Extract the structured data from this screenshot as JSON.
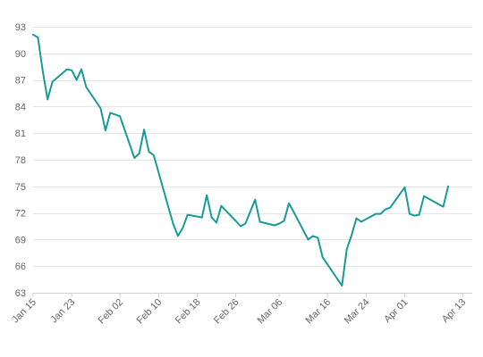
{
  "chart_data": {
    "type": "line",
    "title": "",
    "xlabel": "",
    "ylabel": "",
    "ylim": [
      63,
      93
    ],
    "yticks": [
      63,
      66,
      69,
      72,
      75,
      78,
      81,
      84,
      87,
      90,
      93
    ],
    "xlim": [
      "Jan 15",
      "Apr 15"
    ],
    "xtick_labels": [
      "Jan 15",
      "Jan 23",
      "Feb 02",
      "Feb 10",
      "Feb 18",
      "Feb 26",
      "Mar 06",
      "Mar 16",
      "Mar 24",
      "Apr 01",
      "Apr 13"
    ],
    "grid": true,
    "legend": "none",
    "line_color": "#1a9a96",
    "series": [
      {
        "points": [
          {
            "x": "Jan 15",
            "y": 92.1
          },
          {
            "x": "Jan 16",
            "y": 91.8
          },
          {
            "x": "Jan 17",
            "y": 88.0
          },
          {
            "x": "Jan 18",
            "y": 84.8
          },
          {
            "x": "Jan 19",
            "y": 86.8
          },
          {
            "x": "Jan 22",
            "y": 88.2
          },
          {
            "x": "Jan 23",
            "y": 88.1
          },
          {
            "x": "Jan 24",
            "y": 87.0
          },
          {
            "x": "Jan 25",
            "y": 88.2
          },
          {
            "x": "Jan 26",
            "y": 86.2
          },
          {
            "x": "Jan 29",
            "y": 83.8
          },
          {
            "x": "Jan 30",
            "y": 81.3
          },
          {
            "x": "Jan 31",
            "y": 83.3
          },
          {
            "x": "Feb 01",
            "y": 83.1
          },
          {
            "x": "Feb 02",
            "y": 82.9
          },
          {
            "x": "Feb 05",
            "y": 78.2
          },
          {
            "x": "Feb 06",
            "y": 78.7
          },
          {
            "x": "Feb 07",
            "y": 81.4
          },
          {
            "x": "Feb 08",
            "y": 78.9
          },
          {
            "x": "Feb 09",
            "y": 78.5
          },
          {
            "x": "Feb 12",
            "y": 72.7
          },
          {
            "x": "Feb 13",
            "y": 70.8
          },
          {
            "x": "Feb 14",
            "y": 69.4
          },
          {
            "x": "Feb 15",
            "y": 70.3
          },
          {
            "x": "Feb 16",
            "y": 71.8
          },
          {
            "x": "Feb 19",
            "y": 71.5
          },
          {
            "x": "Feb 20",
            "y": 74.0
          },
          {
            "x": "Feb 21",
            "y": 71.5
          },
          {
            "x": "Feb 22",
            "y": 70.9
          },
          {
            "x": "Feb 23",
            "y": 72.8
          },
          {
            "x": "Feb 26",
            "y": 71.1
          },
          {
            "x": "Feb 27",
            "y": 70.5
          },
          {
            "x": "Feb 28",
            "y": 70.8
          },
          {
            "x": "Mar 01",
            "y": 73.5
          },
          {
            "x": "Mar 02",
            "y": 71.0
          },
          {
            "x": "Mar 05",
            "y": 70.6
          },
          {
            "x": "Mar 06",
            "y": 70.8
          },
          {
            "x": "Mar 07",
            "y": 71.1
          },
          {
            "x": "Mar 08",
            "y": 73.1
          },
          {
            "x": "Mar 09",
            "y": 72.1
          },
          {
            "x": "Mar 12",
            "y": 69.0
          },
          {
            "x": "Mar 13",
            "y": 69.4
          },
          {
            "x": "Mar 14",
            "y": 69.2
          },
          {
            "x": "Mar 15",
            "y": 67.0
          },
          {
            "x": "Mar 16",
            "y": 66.2
          },
          {
            "x": "Mar 19",
            "y": 63.8
          },
          {
            "x": "Mar 20",
            "y": 67.9
          },
          {
            "x": "Mar 21",
            "y": 69.5
          },
          {
            "x": "Mar 22",
            "y": 71.4
          },
          {
            "x": "Mar 23",
            "y": 71.0
          },
          {
            "x": "Mar 26",
            "y": 71.9
          },
          {
            "x": "Mar 27",
            "y": 71.9
          },
          {
            "x": "Mar 28",
            "y": 72.4
          },
          {
            "x": "Mar 29",
            "y": 72.6
          },
          {
            "x": "Apr 01",
            "y": 74.9
          },
          {
            "x": "Apr 02",
            "y": 71.9
          },
          {
            "x": "Apr 03",
            "y": 71.7
          },
          {
            "x": "Apr 04",
            "y": 71.8
          },
          {
            "x": "Apr 05",
            "y": 73.9
          },
          {
            "x": "Apr 08",
            "y": 73.0
          },
          {
            "x": "Apr 09",
            "y": 72.7
          },
          {
            "x": "Apr 10",
            "y": 75.0
          }
        ]
      }
    ]
  }
}
